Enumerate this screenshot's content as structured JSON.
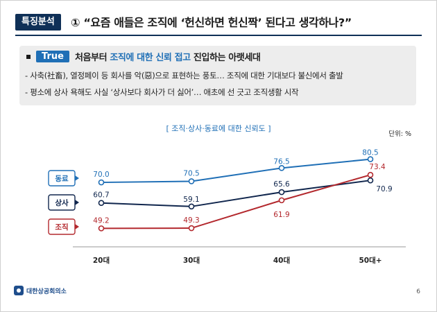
{
  "header": {
    "tag": "특징분석",
    "title": "① “요즘 애들은 조직에 ‘헌신하면 헌신짝’ 된다고 생각하나?”"
  },
  "summary": {
    "badge": "True",
    "lead_pre": "처음부터 ",
    "lead_highlight": "조직에 대한 신뢰 접고",
    "lead_post": " 진입하는 아랫세대",
    "line1": "- 사축(社畜), 열정페이 등 회사를 악(惡)으로 표현하는 풍토… 조직에 대한 기대보다 불신에서 출발",
    "line2": "- 평소에 상사 욕해도 사실 ‘상사보다 회사가 더 싫어’… 애초에 선 긋고 조직생활 시작"
  },
  "chart_data": {
    "type": "line",
    "title": "[ 조직·상사·동료에 대한 신뢰도 ]",
    "unit": "단위: %",
    "categories": [
      "20대",
      "30대",
      "40대",
      "50대+"
    ],
    "ylim": [
      40,
      90
    ],
    "series": [
      {
        "name": "동료",
        "values": [
          70.0,
          70.5,
          76.5,
          80.5
        ],
        "color": "#1f6fb6",
        "labels": [
          "70.0",
          "70.5",
          "76.5",
          "80.5"
        ]
      },
      {
        "name": "상사",
        "values": [
          60.7,
          59.1,
          65.6,
          70.9
        ],
        "color": "#10264d",
        "labels": [
          "60.7",
          "59.1",
          "65.6",
          "70.9"
        ]
      },
      {
        "name": "조직",
        "values": [
          49.2,
          49.3,
          61.9,
          73.4
        ],
        "color": "#b3282d",
        "labels": [
          "49.2",
          "49.3",
          "61.9",
          "73.4"
        ]
      }
    ]
  },
  "footer": {
    "org": "대한상공회의소",
    "page": "6"
  }
}
